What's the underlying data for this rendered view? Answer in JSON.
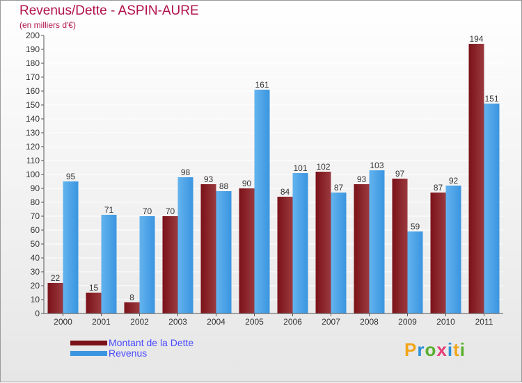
{
  "title": "Revenus/Dette - ASPIN-AURE",
  "subtitle": "(en milliers d'€)",
  "legend": {
    "debt_label": "Montant de la Dette",
    "revenue_label": "Revenus"
  },
  "logo": {
    "letters": [
      "P",
      "r",
      "o",
      "x",
      "i",
      "t",
      "i"
    ],
    "colors": [
      "#f2a51a",
      "#2b8fd8",
      "#59b02e",
      "#e63c78",
      "#2b8fd8",
      "#f2a51a",
      "#59b02e"
    ]
  },
  "colors": {
    "debt": "#7a1218",
    "debt_light": "#9a3a3f",
    "revenue": "#3a95e0",
    "revenue_light": "#63b3ee",
    "title": "#b0104b",
    "legend_text": "#4a4aff"
  },
  "chart_data": {
    "type": "bar",
    "categories": [
      "2000",
      "2001",
      "2002",
      "2003",
      "2004",
      "2005",
      "2006",
      "2007",
      "2008",
      "2009",
      "2010",
      "2011"
    ],
    "series": [
      {
        "name": "Montant de la Dette",
        "values": [
          22,
          15,
          8,
          70,
          93,
          90,
          84,
          102,
          93,
          97,
          87,
          194
        ]
      },
      {
        "name": "Revenus",
        "values": [
          95,
          71,
          70,
          98,
          88,
          161,
          101,
          87,
          103,
          59,
          92,
          151
        ]
      }
    ],
    "ylim": [
      0,
      200
    ],
    "yticks": [
      0,
      10,
      20,
      30,
      40,
      50,
      60,
      70,
      80,
      90,
      100,
      110,
      120,
      130,
      140,
      150,
      160,
      170,
      180,
      190,
      200
    ],
    "grid": true,
    "legend_position": "bottom-left"
  }
}
